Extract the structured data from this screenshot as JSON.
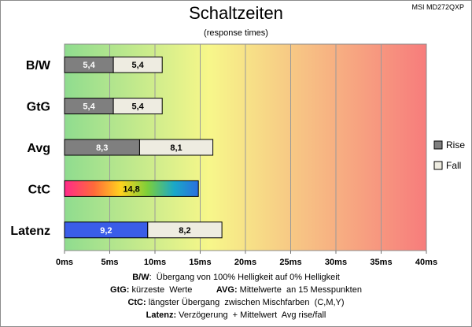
{
  "header": {
    "title": "Schaltzeiten",
    "subtitle": "(response times)",
    "model": "MSI MD272QXP"
  },
  "chart_data": {
    "type": "bar",
    "orientation": "horizontal",
    "stacked": true,
    "categories": [
      "B/W",
      "GtG",
      "Avg",
      "CtC",
      "Latenz"
    ],
    "series": [
      {
        "name": "Rise",
        "values": [
          5.4,
          5.4,
          8.3,
          14.8,
          9.2
        ],
        "labels": [
          "5,4",
          "5,4",
          "8,3",
          "14,8",
          "9,2"
        ]
      },
      {
        "name": "Fall",
        "values": [
          5.4,
          5.4,
          8.1,
          null,
          8.2
        ],
        "labels": [
          "5,4",
          "5,4",
          "8,1",
          "",
          "8,2"
        ]
      }
    ],
    "xlim": [
      0,
      40
    ],
    "xticks": [
      0,
      5,
      10,
      15,
      20,
      25,
      30,
      35,
      40
    ],
    "xtick_labels": [
      "0ms",
      "5ms",
      "10ms",
      "15ms",
      "20ms",
      "25ms",
      "30ms",
      "35ms",
      "40ms"
    ],
    "grid": true,
    "legend": {
      "position": "right",
      "items": [
        "Rise",
        "Fall"
      ]
    },
    "colors": {
      "rise": "#7f7f7f",
      "fall": "#eeece1",
      "bar_border": "#000000",
      "latenz_rise": "#3a5de8",
      "background_gradient": [
        "#8fdc8f",
        "#f7f78a",
        "#f77c7c"
      ]
    }
  },
  "footnotes": [
    {
      "key": "B/W",
      "text": ":  Übergang von 100% Helligkeit auf 0% Helligkeit"
    },
    {
      "key": "GtG:",
      "text": " kürzeste  Werte          ",
      "key2": "AVG:",
      "text2": " Mittelwerte  an 15 Messpunkten"
    },
    {
      "key": "CtC:",
      "text": " längster Übergang  zwischen Mischfarben  (C,M,Y)"
    },
    {
      "key": "Latenz:",
      "text": " Verzögerung  + Mittelwert  Avg rise/fall"
    }
  ]
}
